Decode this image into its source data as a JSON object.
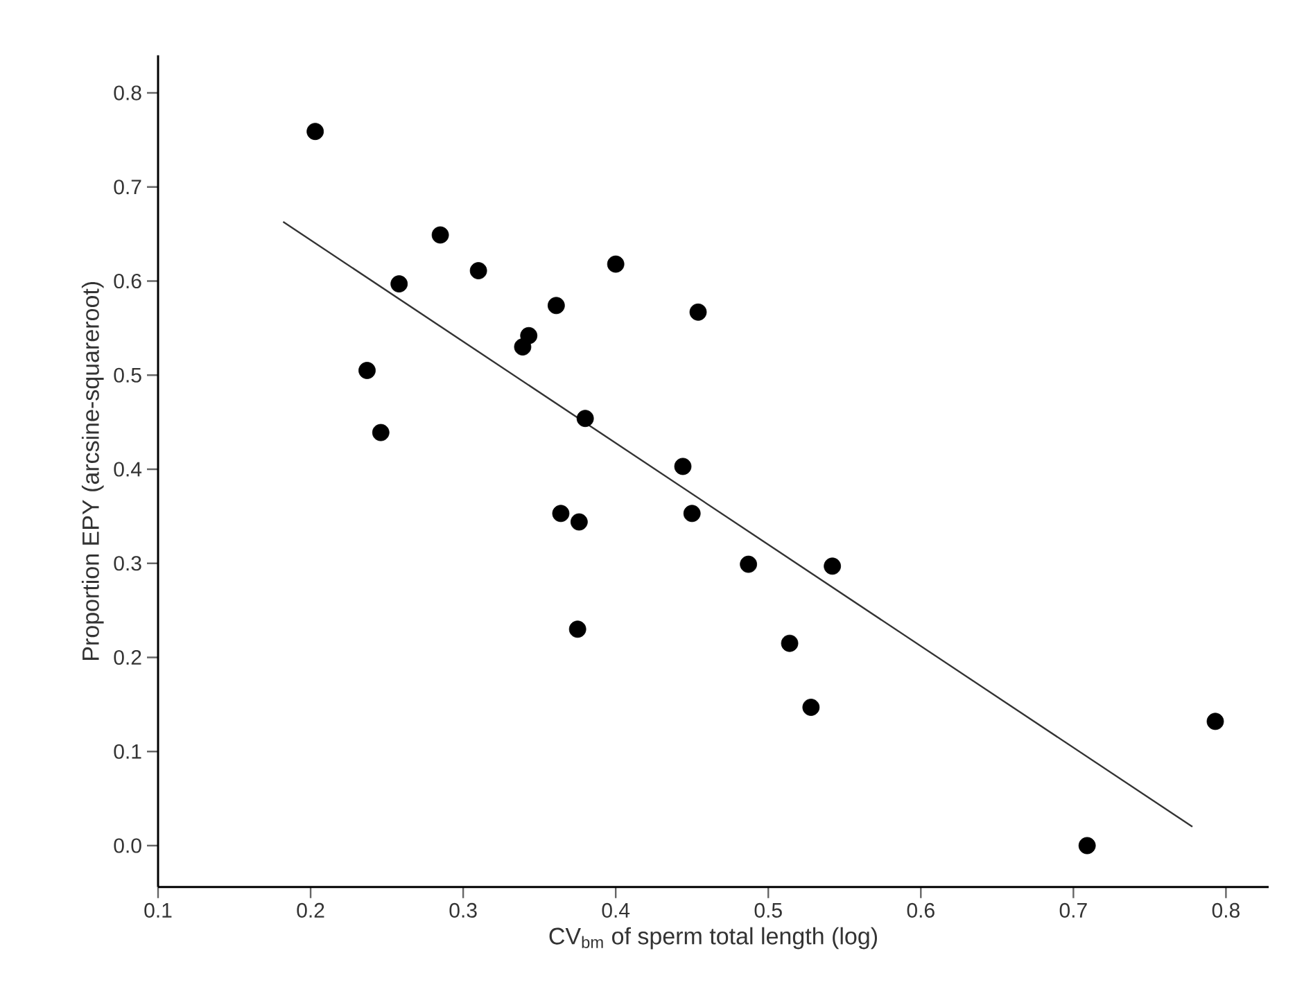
{
  "chart_data": {
    "type": "scatter",
    "xlabel": "CV$_{bm}$ of sperm total length (log)",
    "ylabel": "Proportion EPY (arcsine-squareroot)",
    "xlim": [
      0.1,
      0.828
    ],
    "ylim": [
      -0.044,
      0.84
    ],
    "xticks": [
      0.1,
      0.2,
      0.3,
      0.4,
      0.5,
      0.6,
      0.7,
      0.8
    ],
    "yticks": [
      {
        "value": 0,
        "label": "0.0"
      },
      0.1,
      0.2,
      0.3,
      0.4,
      0.5,
      0.6,
      0.7,
      0.8
    ],
    "series": [
      {
        "color": "#000000",
        "marker": "circle",
        "x": [
          0.203,
          0.285,
          0.31,
          0.258,
          0.4,
          0.361,
          0.454,
          0.339,
          0.343,
          0.237,
          0.38,
          0.246,
          0.444,
          0.364,
          0.376,
          0.45,
          0.487,
          0.542,
          0.375,
          0.514,
          0.528,
          0.709,
          0.793
        ],
        "values": [
          0.759,
          0.649,
          0.611,
          0.597,
          0.618,
          0.574,
          0.567,
          0.53,
          0.542,
          0.505,
          0.454,
          0.439,
          0.403,
          0.353,
          0.344,
          0.353,
          0.299,
          0.297,
          0.23,
          0.215,
          0.147,
          0.0,
          0.132
        ]
      },
      {
        "type": "line",
        "color": "#333333",
        "marker": "none",
        "x": [
          0.182,
          0.778
        ],
        "values": [
          0.663,
          0.02
        ]
      }
    ]
  }
}
